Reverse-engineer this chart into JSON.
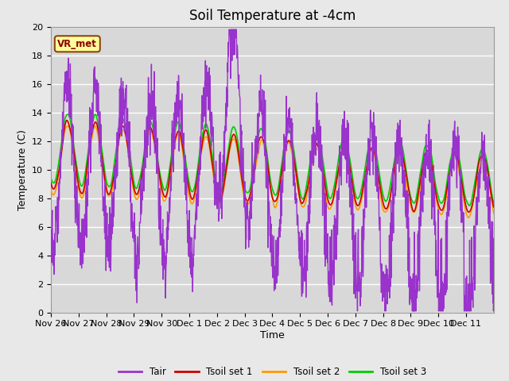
{
  "title": "Soil Temperature at -4cm",
  "xlabel": "Time",
  "ylabel": "Temperature (C)",
  "ylim": [
    0,
    20
  ],
  "yticks": [
    0,
    2,
    4,
    6,
    8,
    10,
    12,
    14,
    16,
    18,
    20
  ],
  "x_tick_labels": [
    "Nov 26",
    "Nov 27",
    "Nov 28",
    "Nov 29",
    "Nov 30",
    "Dec 1",
    "Dec 2",
    "Dec 3",
    "Dec 4",
    "Dec 5",
    "Dec 6",
    "Dec 7",
    "Dec 8",
    "Dec 9",
    "Dec 10",
    "Dec 11"
  ],
  "line_colors": {
    "Tair": "#9933cc",
    "Tsoil1": "#cc0000",
    "Tsoil2": "#ff9900",
    "Tsoil3": "#00cc00"
  },
  "legend_labels": [
    "Tair",
    "Tsoil set 1",
    "Tsoil set 2",
    "Tsoil set 3"
  ],
  "legend_colors": [
    "#9933cc",
    "#cc0000",
    "#ff9900",
    "#00cc00"
  ],
  "station_label": "VR_met",
  "station_box_color": "#ffff99",
  "station_box_edge": "#8B4513",
  "bg_color": "#e8e8e8",
  "plot_bg_color": "#d8d8d8",
  "grid_color": "#ffffff",
  "title_fontsize": 12,
  "axis_fontsize": 9,
  "tick_fontsize": 8
}
